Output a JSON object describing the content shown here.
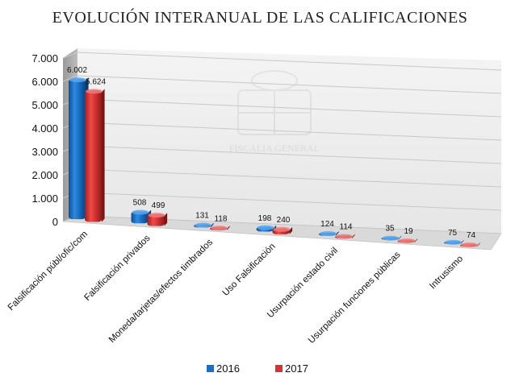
{
  "chart_data": {
    "type": "bar",
    "title": "EVOLUCIÓN INTERANUAL DE LAS CALIFICACIONES",
    "categories": [
      "Falsificación públ/ofic/com",
      "Falsificación privados",
      "Moneda/tarjetas/efectos timbrados",
      "Uso Falsificación",
      "Usurpación estado civil",
      "Usurpación funciones públicas",
      "Intrusismo"
    ],
    "series": [
      {
        "name": "2016",
        "values": [
          6002,
          508,
          131,
          198,
          124,
          35,
          75
        ],
        "labels": [
          "6.002",
          "508",
          "131",
          "198",
          "124",
          "35",
          "75"
        ]
      },
      {
        "name": "2017",
        "values": [
          5624,
          499,
          118,
          240,
          114,
          19,
          74
        ],
        "labels": [
          "5.624",
          "499",
          "118",
          "240",
          "114",
          "19",
          "74"
        ]
      }
    ],
    "y_ticks": [
      0,
      1000,
      2000,
      3000,
      4000,
      5000,
      6000,
      7000
    ],
    "y_tick_labels": [
      "0",
      "1.000",
      "2.000",
      "3.000",
      "4.000",
      "5.000",
      "6.000",
      "7.000"
    ],
    "ylim": [
      0,
      7000
    ],
    "grid": true,
    "legend_position": "bottom",
    "colors": {
      "2016": "#1a6fc4",
      "2017": "#d63333"
    },
    "watermark": "FISCALIA GENERAL DEL ESTADO"
  }
}
